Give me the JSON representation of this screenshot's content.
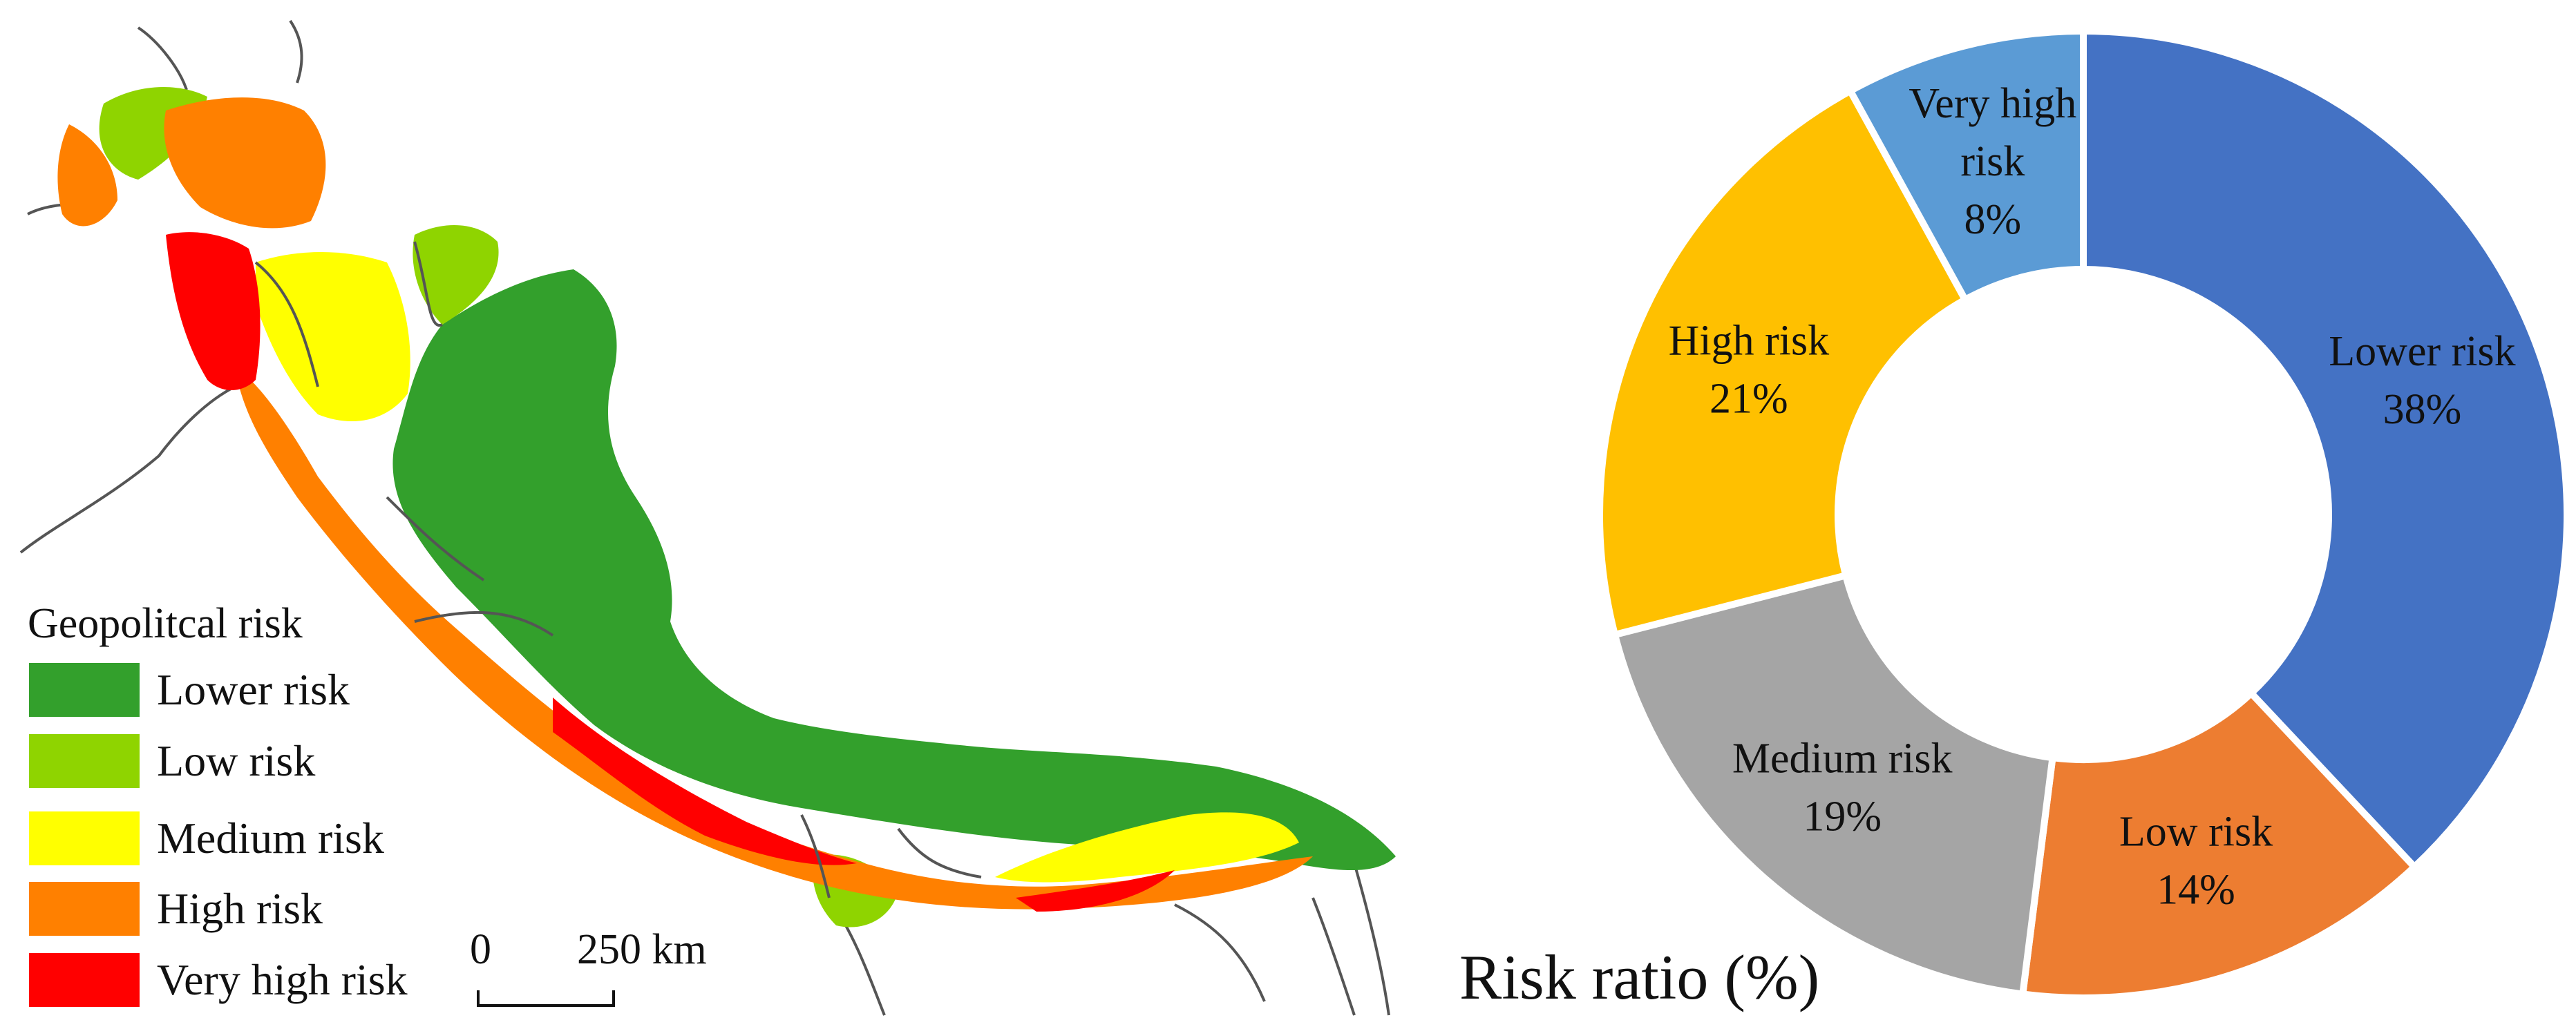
{
  "map": {
    "legend": {
      "title": "Geopolitcal risk",
      "items": [
        {
          "label": "Lower risk",
          "color": "#33a02c"
        },
        {
          "label": "Low risk",
          "color": "#8fd400"
        },
        {
          "label": "Medium risk",
          "color": "#ffff00"
        },
        {
          "label": "High risk",
          "color": "#ff8000"
        },
        {
          "label": "Very high risk",
          "color": "#ff0000"
        }
      ]
    },
    "scale": {
      "zero": "0",
      "distance": "250 km"
    }
  },
  "chart_data": {
    "type": "pie",
    "title": "Risk ratio (%)",
    "start_angle_deg": 0,
    "direction": "clockwise",
    "slices": [
      {
        "label_lines": [
          "Lower risk",
          "38%"
        ],
        "name": "Lower risk",
        "value": 38,
        "color": "#4472c4"
      },
      {
        "label_lines": [
          "Low risk",
          "14%"
        ],
        "name": "Low risk",
        "value": 14,
        "color": "#ed7d31"
      },
      {
        "label_lines": [
          "Medium risk",
          "19%"
        ],
        "name": "Medium risk",
        "value": 19,
        "color": "#a5a5a5"
      },
      {
        "label_lines": [
          "High risk",
          "21%"
        ],
        "name": "High risk",
        "value": 21,
        "color": "#ffc000"
      },
      {
        "label_lines": [
          "Very high",
          "risk",
          "8%"
        ],
        "name": "Very high risk",
        "value": 8,
        "color": "#5b9bd5"
      }
    ]
  }
}
